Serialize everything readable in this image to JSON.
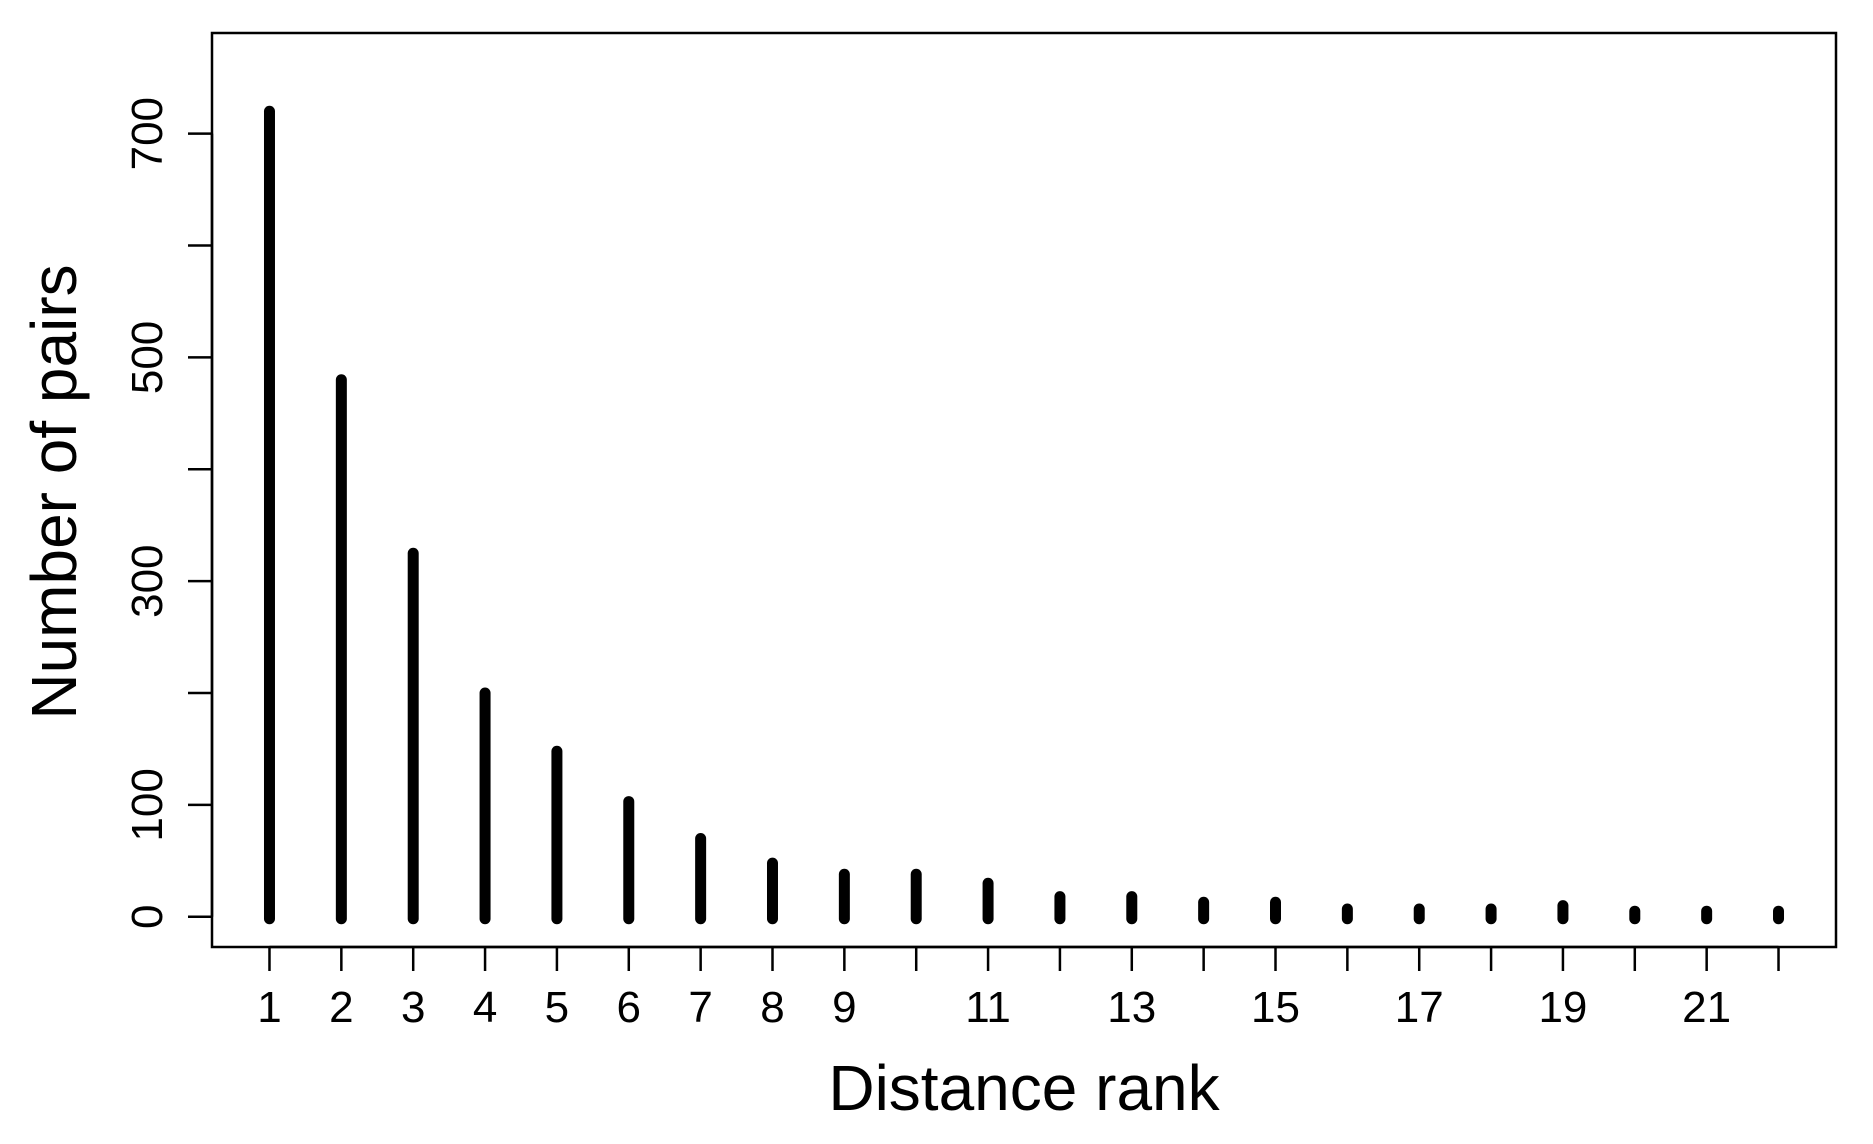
{
  "chart_data": {
    "type": "bar",
    "style": "histogram-spikes",
    "xlabel": "Distance rank",
    "ylabel": "Number of pairs",
    "x": [
      1,
      2,
      3,
      4,
      5,
      6,
      7,
      8,
      9,
      10,
      11,
      12,
      13,
      14,
      15,
      16,
      17,
      18,
      19,
      20,
      21,
      22
    ],
    "values": [
      720,
      480,
      325,
      200,
      148,
      103,
      70,
      48,
      38,
      38,
      30,
      18,
      18,
      13,
      13,
      7,
      7,
      7,
      10,
      5,
      5,
      5
    ],
    "x_ticks": [
      1,
      2,
      3,
      4,
      5,
      6,
      7,
      8,
      9,
      10,
      11,
      12,
      13,
      14,
      15,
      16,
      17,
      18,
      19,
      20,
      21,
      22
    ],
    "x_tick_labels": [
      "1",
      "2",
      "3",
      "4",
      "5",
      "6",
      "7",
      "8",
      "9",
      "",
      "11",
      "",
      "13",
      "",
      "15",
      "",
      "17",
      "",
      "19",
      "",
      "21",
      ""
    ],
    "y_ticks": [
      0,
      100,
      200,
      300,
      400,
      500,
      600,
      700
    ],
    "y_tick_labels": [
      "0",
      "100",
      "",
      "300",
      "",
      "500",
      "",
      "700"
    ],
    "xlim": [
      0.2,
      22.8
    ],
    "ylim": [
      -27,
      790
    ],
    "grid": false,
    "legend": "none",
    "colors": {
      "bars": "#000000",
      "axes": "#000000",
      "background": "#ffffff"
    }
  }
}
